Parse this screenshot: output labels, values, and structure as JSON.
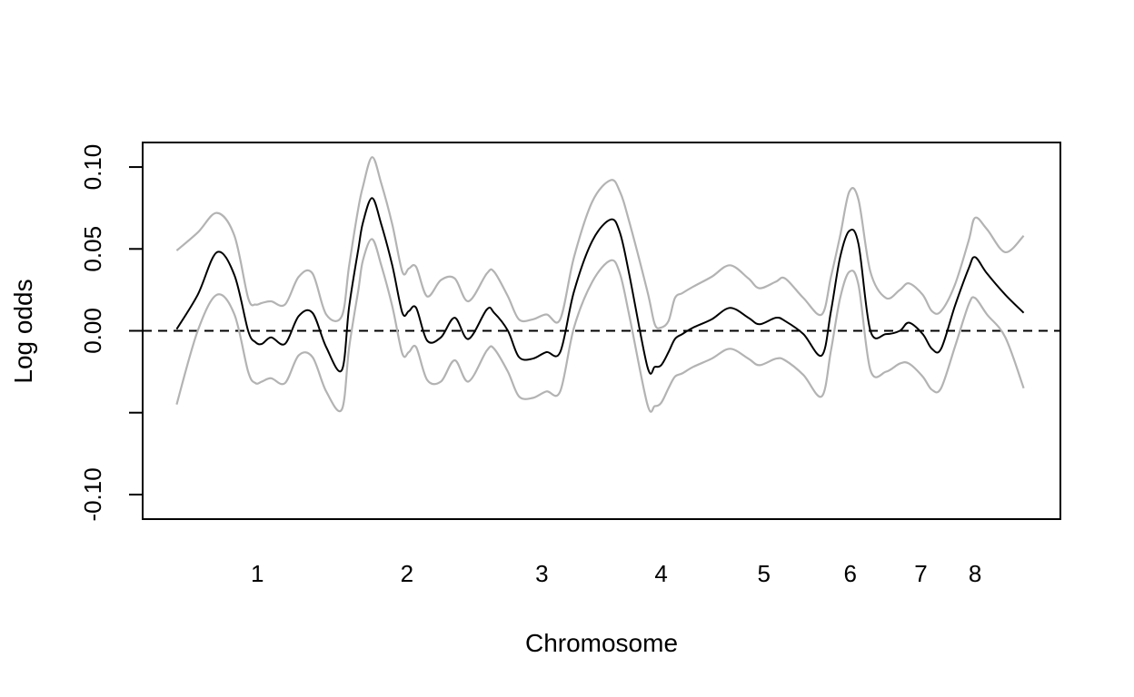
{
  "chart_data": {
    "type": "line",
    "title": "",
    "xlabel": "Chromosome",
    "ylabel": "Log odds",
    "ylim": [
      -0.115,
      0.115
    ],
    "xlim": [
      0,
      1
    ],
    "y_ticks": [
      {
        "value": 0.1,
        "label": "0.10"
      },
      {
        "value": 0.05,
        "label": "0.05"
      },
      {
        "value": 0.0,
        "label": "0.00"
      },
      {
        "value": -0.05,
        "label": ""
      },
      {
        "value": -0.1,
        "label": "-0.10"
      }
    ],
    "x_ticks": [
      {
        "value": 0.125,
        "label": "1"
      },
      {
        "value": 0.288,
        "label": "2"
      },
      {
        "value": 0.435,
        "label": "3"
      },
      {
        "value": 0.565,
        "label": "4"
      },
      {
        "value": 0.677,
        "label": "5"
      },
      {
        "value": 0.771,
        "label": "6"
      },
      {
        "value": 0.848,
        "label": "7"
      },
      {
        "value": 0.907,
        "label": "8"
      }
    ],
    "reference_line": {
      "y": 0.0,
      "style": "dashed"
    },
    "colors": {
      "estimate": "#000000",
      "bounds": "#b3b3b3",
      "reference": "#000000"
    },
    "x": [
      0.037,
      0.06,
      0.081,
      0.1,
      0.115,
      0.123,
      0.13,
      0.14,
      0.155,
      0.17,
      0.185,
      0.2,
      0.217,
      0.225,
      0.235,
      0.24,
      0.25,
      0.26,
      0.272,
      0.283,
      0.29,
      0.298,
      0.31,
      0.325,
      0.34,
      0.355,
      0.375,
      0.383,
      0.398,
      0.41,
      0.425,
      0.44,
      0.455,
      0.47,
      0.49,
      0.51,
      0.52,
      0.53,
      0.55,
      0.558,
      0.565,
      0.573,
      0.58,
      0.588,
      0.6,
      0.62,
      0.64,
      0.66,
      0.672,
      0.69,
      0.7,
      0.72,
      0.74,
      0.75,
      0.76,
      0.77,
      0.78,
      0.793,
      0.81,
      0.825,
      0.835,
      0.85,
      0.86,
      0.87,
      0.885,
      0.9,
      0.907,
      0.92,
      0.94,
      0.96
    ],
    "series": [
      {
        "name": "",
        "role": "upper",
        "values": [
          0.049,
          0.06,
          0.072,
          0.058,
          0.02,
          0.016,
          0.017,
          0.018,
          0.016,
          0.033,
          0.035,
          0.01,
          0.009,
          0.04,
          0.075,
          0.088,
          0.106,
          0.09,
          0.065,
          0.036,
          0.038,
          0.039,
          0.021,
          0.031,
          0.032,
          0.018,
          0.035,
          0.036,
          0.021,
          0.007,
          0.007,
          0.01,
          0.007,
          0.045,
          0.079,
          0.092,
          0.085,
          0.067,
          0.024,
          0.004,
          0.002,
          0.006,
          0.02,
          0.023,
          0.027,
          0.033,
          0.04,
          0.032,
          0.026,
          0.03,
          0.032,
          0.02,
          0.01,
          0.033,
          0.058,
          0.085,
          0.08,
          0.036,
          0.02,
          0.025,
          0.029,
          0.022,
          0.012,
          0.012,
          0.028,
          0.055,
          0.069,
          0.062,
          0.048,
          0.058
        ]
      },
      {
        "name": "",
        "role": "estimate",
        "values": [
          0.001,
          0.022,
          0.048,
          0.034,
          0.0,
          -0.007,
          -0.008,
          -0.004,
          -0.008,
          0.009,
          0.011,
          -0.01,
          -0.024,
          0.015,
          0.05,
          0.066,
          0.081,
          0.065,
          0.04,
          0.011,
          0.012,
          0.014,
          -0.006,
          -0.004,
          0.008,
          -0.005,
          0.013,
          0.011,
          0.0,
          -0.016,
          -0.017,
          -0.013,
          -0.013,
          0.024,
          0.055,
          0.068,
          0.06,
          0.035,
          -0.022,
          -0.022,
          -0.021,
          -0.013,
          -0.005,
          -0.002,
          0.002,
          0.007,
          0.014,
          0.008,
          0.004,
          0.008,
          0.006,
          -0.002,
          -0.015,
          0.012,
          0.045,
          0.061,
          0.053,
          0.0,
          -0.002,
          0.0,
          0.005,
          -0.002,
          -0.011,
          -0.011,
          0.015,
          0.038,
          0.045,
          0.035,
          0.022,
          0.011
        ]
      },
      {
        "name": "",
        "role": "lower",
        "values": [
          -0.045,
          0.0,
          0.022,
          0.01,
          -0.025,
          -0.032,
          -0.031,
          -0.029,
          -0.032,
          -0.015,
          -0.016,
          -0.037,
          -0.048,
          -0.01,
          0.025,
          0.043,
          0.056,
          0.04,
          0.015,
          -0.014,
          -0.013,
          -0.01,
          -0.03,
          -0.031,
          -0.018,
          -0.031,
          -0.012,
          -0.011,
          -0.025,
          -0.04,
          -0.041,
          -0.037,
          -0.037,
          0.002,
          0.03,
          0.043,
          0.035,
          0.01,
          -0.045,
          -0.046,
          -0.044,
          -0.035,
          -0.028,
          -0.026,
          -0.022,
          -0.017,
          -0.011,
          -0.017,
          -0.021,
          -0.017,
          -0.018,
          -0.027,
          -0.04,
          -0.012,
          0.02,
          0.036,
          0.028,
          -0.024,
          -0.025,
          -0.02,
          -0.02,
          -0.028,
          -0.036,
          -0.035,
          -0.01,
          0.016,
          0.02,
          0.01,
          -0.004,
          -0.035
        ]
      }
    ],
    "legend": "none",
    "grid": false
  }
}
